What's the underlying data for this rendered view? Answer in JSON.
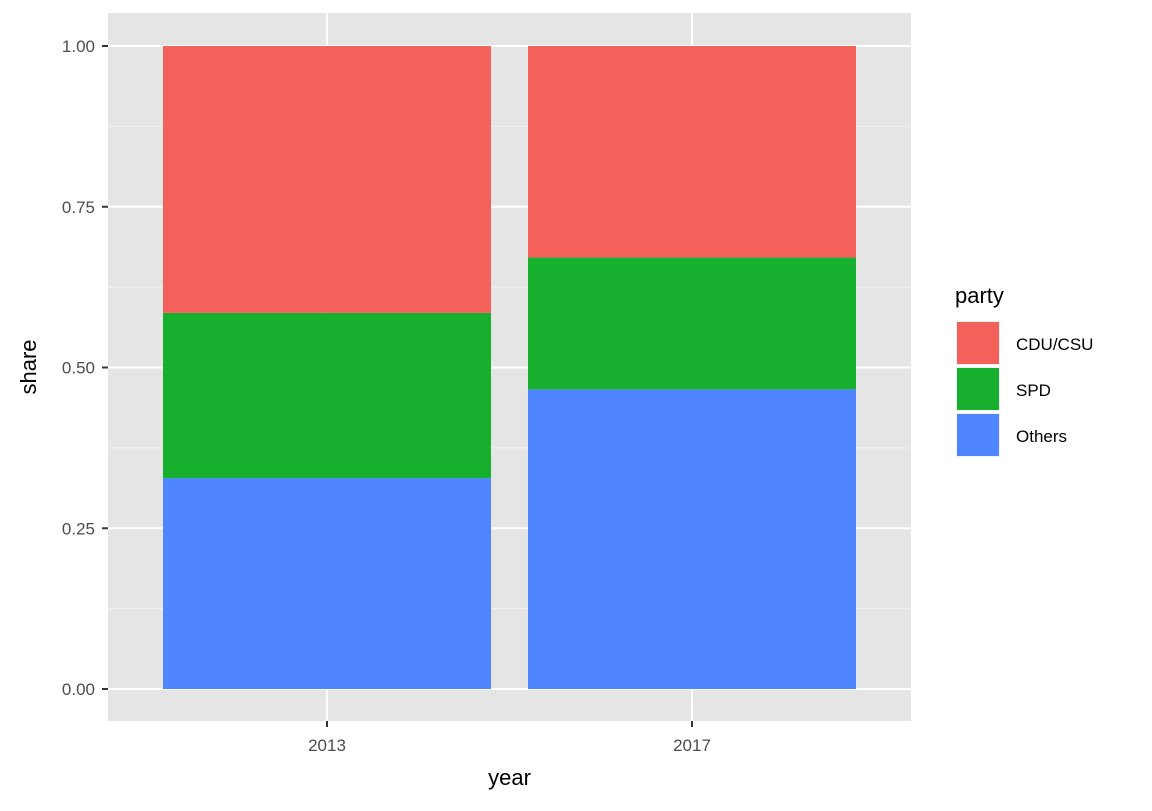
{
  "chart_data": {
    "type": "bar",
    "stacked": true,
    "title": "",
    "xlabel": "year",
    "ylabel": "share",
    "ylim": [
      0,
      1
    ],
    "yticks": [
      "0.00",
      "0.25",
      "0.50",
      "0.75",
      "1.00"
    ],
    "categories": [
      "2013",
      "2017"
    ],
    "series": [
      {
        "name": "Others",
        "values": [
          0.328,
          0.466
        ],
        "color": "#4F86FF"
      },
      {
        "name": "SPD",
        "values": [
          0.257,
          0.205
        ],
        "color": "#17B02E"
      },
      {
        "name": "CDU/CSU",
        "values": [
          0.415,
          0.329
        ],
        "color": "#F4605A"
      }
    ],
    "legend": {
      "title": "party",
      "placement": "right",
      "entries": [
        "CDU/CSU",
        "SPD",
        "Others"
      ]
    },
    "grid": true,
    "panel_background": "#E5E5E5"
  }
}
